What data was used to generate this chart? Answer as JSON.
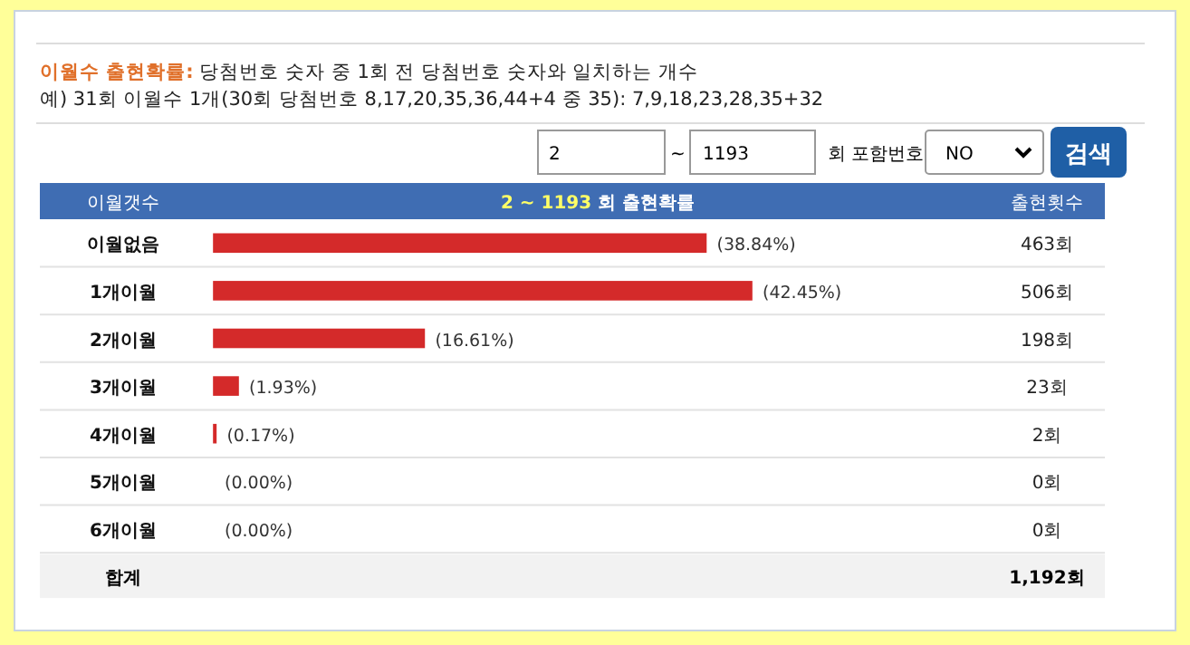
{
  "chart_data": {
    "type": "bar",
    "orientation": "horizontal",
    "title": "이월수 출현확률: 당첨번호 숫자 중 1회 전 당첨번호 숫자와 일치하는 개수",
    "subtitle": "예) 31회 이월수 1개(30회 당첨번호 8,17,20,35,36,44+4 중 35): 7,9,18,23,28,35+32",
    "ylabel": "이월갯수",
    "xlabel": "2 ~ 1193 회 출현확률",
    "categories": [
      "이월없음",
      "1개이월",
      "2개이월",
      "3개이월",
      "4개이월",
      "5개이월",
      "6개이월"
    ],
    "values": [
      38.84,
      42.45,
      16.61,
      1.93,
      0.17,
      0.0,
      0.0
    ],
    "value_labels": [
      "(38.84%)",
      "(42.45%)",
      "(16.61%)",
      "(1.93%)",
      "(0.17%)",
      "(0.00%)",
      "(0.00%)"
    ],
    "color": "#d42a2a",
    "annotations": [
      "2",
      "~",
      "1193",
      "회 포함번호",
      "NO",
      "검색",
      "출현횟수",
      "합계",
      "1,192회",
      "463회",
      "506회",
      "198회",
      "23회",
      "2회",
      "0회",
      "0회"
    ]
  }
}
